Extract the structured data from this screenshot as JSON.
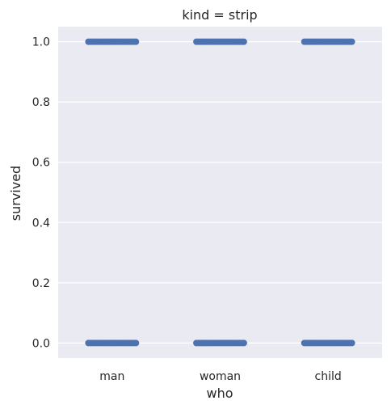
{
  "chart_data": {
    "type": "scatter",
    "title": "kind = strip",
    "xlabel": "who",
    "ylabel": "survived",
    "categories": [
      "man",
      "woman",
      "child"
    ],
    "yticks": [
      "0.0",
      "0.2",
      "0.4",
      "0.6",
      "0.8",
      "1.0"
    ],
    "ytick_values": [
      0.0,
      0.2,
      0.4,
      0.6,
      0.8,
      1.0
    ],
    "ylim": [
      -0.05,
      1.05
    ],
    "grid": true,
    "background_color": "#eaeaf2",
    "grid_color": "#ffffff",
    "point_color": "#4c72b0",
    "series": [
      {
        "points": [
          {
            "category": "man",
            "y": 0
          },
          {
            "category": "man",
            "y": 1
          },
          {
            "category": "woman",
            "y": 0
          },
          {
            "category": "woman",
            "y": 1
          },
          {
            "category": "child",
            "y": 0
          },
          {
            "category": "child",
            "y": 1
          }
        ]
      }
    ]
  }
}
